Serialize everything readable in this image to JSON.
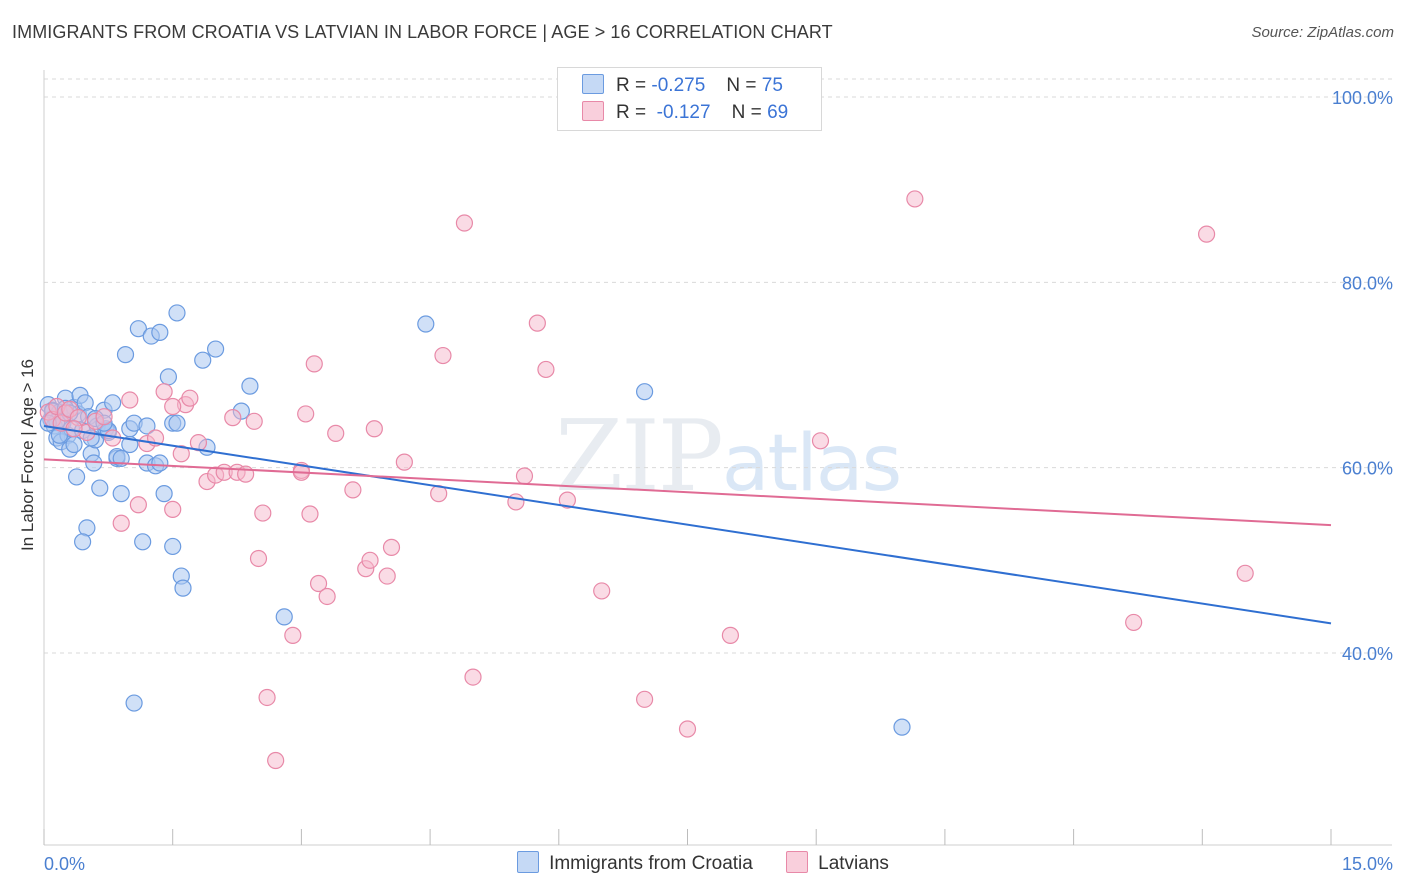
{
  "title": "IMMIGRANTS FROM CROATIA VS LATVIAN IN LABOR FORCE | AGE > 16 CORRELATION CHART",
  "source": "Source: ZipAtlas.com",
  "watermark": {
    "zip": "ZIP",
    "atlas": "atlas"
  },
  "colors": {
    "blue_fill": "#a9c7f0",
    "blue_stroke": "#6b9be0",
    "blue_line": "#2f6fd1",
    "pink_fill": "#f5b7cc",
    "pink_stroke": "#e889a8",
    "pink_line": "#e06b94",
    "axis_text": "#4a7fd0",
    "grid": "#d9d9d9"
  },
  "legend_top": [
    {
      "r_label": "R =",
      "r_value": "-0.275",
      "n_label": "N =",
      "n_value": "75"
    },
    {
      "r_label": "R =",
      "r_value": "-0.127",
      "n_label": "N =",
      "n_value": "69"
    }
  ],
  "legend_bottom": [
    "Immigrants from Croatia",
    "Latvians"
  ],
  "chart_data": {
    "type": "scatter",
    "title": "IMMIGRANTS FROM CROATIA VS LATVIAN IN LABOR FORCE | AGE > 16 CORRELATION CHART",
    "xlabel": "",
    "ylabel": "In Labor Force | Age > 16",
    "xlim": [
      0,
      15
    ],
    "ylim": [
      20,
      102
    ],
    "x_tick_labels": [
      "0.0%",
      "15.0%"
    ],
    "y_ticks": [
      40,
      60,
      80,
      100
    ],
    "y_tick_labels": [
      "40.0%",
      "60.0%",
      "80.0%",
      "100.0%"
    ],
    "grid": true,
    "series": [
      {
        "name": "Immigrants from Croatia",
        "r": -0.275,
        "n": 75,
        "trend": {
          "x": [
            0,
            15
          ],
          "y": [
            64.5,
            43.2
          ]
        },
        "points": [
          [
            0.05,
            66.8
          ],
          [
            0.08,
            65.2
          ],
          [
            0.1,
            66.2
          ],
          [
            0.12,
            64.5
          ],
          [
            0.15,
            63.2
          ],
          [
            0.18,
            66.0
          ],
          [
            0.2,
            62.8
          ],
          [
            0.22,
            64.8
          ],
          [
            0.25,
            67.5
          ],
          [
            0.28,
            63.5
          ],
          [
            0.3,
            62.0
          ],
          [
            0.32,
            64.2
          ],
          [
            0.35,
            66.5
          ],
          [
            0.38,
            59.0
          ],
          [
            0.4,
            65.8
          ],
          [
            0.42,
            67.8
          ],
          [
            0.45,
            64.0
          ],
          [
            0.48,
            67.0
          ],
          [
            0.5,
            53.5
          ],
          [
            0.52,
            65.5
          ],
          [
            0.55,
            61.5
          ],
          [
            0.58,
            60.5
          ],
          [
            0.6,
            63.0
          ],
          [
            0.62,
            64.5
          ],
          [
            0.65,
            57.8
          ],
          [
            0.7,
            66.2
          ],
          [
            0.72,
            64.2
          ],
          [
            0.75,
            63.8
          ],
          [
            0.8,
            67.0
          ],
          [
            0.85,
            61.0
          ],
          [
            0.9,
            57.2
          ],
          [
            0.95,
            72.2
          ],
          [
            1.0,
            64.2
          ],
          [
            1.05,
            64.8
          ],
          [
            1.1,
            75.0
          ],
          [
            1.15,
            52.0
          ],
          [
            1.2,
            60.5
          ],
          [
            1.25,
            74.2
          ],
          [
            1.3,
            60.2
          ],
          [
            1.35,
            74.6
          ],
          [
            1.4,
            57.2
          ],
          [
            1.45,
            69.8
          ],
          [
            1.5,
            64.8
          ],
          [
            1.55,
            76.7
          ],
          [
            1.6,
            48.3
          ],
          [
            1.62,
            47.0
          ],
          [
            1.85,
            71.6
          ],
          [
            1.9,
            62.2
          ],
          [
            2.0,
            72.8
          ],
          [
            2.4,
            68.8
          ],
          [
            2.3,
            66.1
          ],
          [
            2.8,
            43.9
          ],
          [
            4.45,
            75.5
          ],
          [
            7.0,
            68.2
          ],
          [
            10.0,
            32.0
          ],
          [
            1.05,
            34.6
          ],
          [
            0.45,
            52.0
          ],
          [
            0.85,
            61.2
          ],
          [
            0.1,
            66.1
          ],
          [
            0.15,
            65.0
          ],
          [
            0.35,
            62.5
          ],
          [
            0.6,
            65.3
          ],
          [
            0.9,
            61.0
          ],
          [
            1.2,
            64.5
          ],
          [
            1.35,
            60.5
          ],
          [
            1.55,
            64.8
          ],
          [
            0.25,
            66.4
          ],
          [
            0.55,
            63.2
          ],
          [
            0.75,
            64.0
          ],
          [
            0.05,
            64.8
          ],
          [
            0.18,
            63.5
          ],
          [
            1.0,
            62.5
          ],
          [
            0.7,
            64.8
          ],
          [
            0.3,
            65.9
          ],
          [
            1.5,
            51.5
          ]
        ]
      },
      {
        "name": "Latvians",
        "r": -0.127,
        "n": 69,
        "trend": {
          "x": [
            0,
            15
          ],
          "y": [
            60.9,
            53.8
          ]
        },
        "points": [
          [
            0.05,
            66.0
          ],
          [
            0.1,
            65.2
          ],
          [
            0.15,
            66.6
          ],
          [
            0.2,
            64.8
          ],
          [
            0.25,
            65.9
          ],
          [
            0.3,
            66.3
          ],
          [
            0.4,
            65.4
          ],
          [
            0.5,
            63.8
          ],
          [
            0.6,
            65.0
          ],
          [
            0.7,
            65.5
          ],
          [
            0.8,
            63.2
          ],
          [
            0.9,
            54.0
          ],
          [
            1.0,
            67.3
          ],
          [
            1.1,
            56.0
          ],
          [
            1.2,
            62.6
          ],
          [
            1.3,
            63.2
          ],
          [
            1.4,
            68.2
          ],
          [
            1.5,
            55.5
          ],
          [
            1.6,
            61.5
          ],
          [
            1.65,
            66.8
          ],
          [
            1.7,
            67.5
          ],
          [
            1.8,
            62.7
          ],
          [
            1.9,
            58.5
          ],
          [
            2.0,
            59.2
          ],
          [
            2.1,
            59.5
          ],
          [
            2.2,
            65.4
          ],
          [
            2.25,
            59.5
          ],
          [
            2.35,
            59.3
          ],
          [
            2.5,
            50.2
          ],
          [
            2.55,
            55.1
          ],
          [
            2.6,
            35.2
          ],
          [
            2.7,
            28.4
          ],
          [
            2.9,
            41.9
          ],
          [
            3.0,
            59.7
          ],
          [
            3.05,
            65.8
          ],
          [
            3.1,
            55.0
          ],
          [
            3.15,
            71.2
          ],
          [
            3.2,
            47.5
          ],
          [
            3.3,
            46.1
          ],
          [
            3.4,
            63.7
          ],
          [
            3.6,
            57.6
          ],
          [
            3.75,
            49.1
          ],
          [
            3.8,
            50.0
          ],
          [
            3.85,
            64.2
          ],
          [
            4.0,
            48.3
          ],
          [
            4.05,
            51.4
          ],
          [
            4.2,
            60.6
          ],
          [
            4.6,
            57.2
          ],
          [
            4.65,
            72.1
          ],
          [
            4.9,
            86.4
          ],
          [
            5.0,
            37.4
          ],
          [
            5.5,
            56.3
          ],
          [
            5.6,
            59.1
          ],
          [
            5.75,
            75.6
          ],
          [
            5.85,
            70.6
          ],
          [
            6.1,
            56.5
          ],
          [
            6.5,
            46.7
          ],
          [
            7.0,
            35.0
          ],
          [
            7.5,
            31.8
          ],
          [
            8.0,
            41.9
          ],
          [
            9.05,
            62.9
          ],
          [
            10.15,
            89.0
          ],
          [
            12.7,
            43.3
          ],
          [
            13.55,
            85.2
          ],
          [
            14.0,
            48.6
          ],
          [
            1.5,
            66.6
          ],
          [
            2.45,
            65.0
          ],
          [
            0.35,
            64.2
          ],
          [
            3.0,
            59.5
          ]
        ]
      }
    ]
  }
}
